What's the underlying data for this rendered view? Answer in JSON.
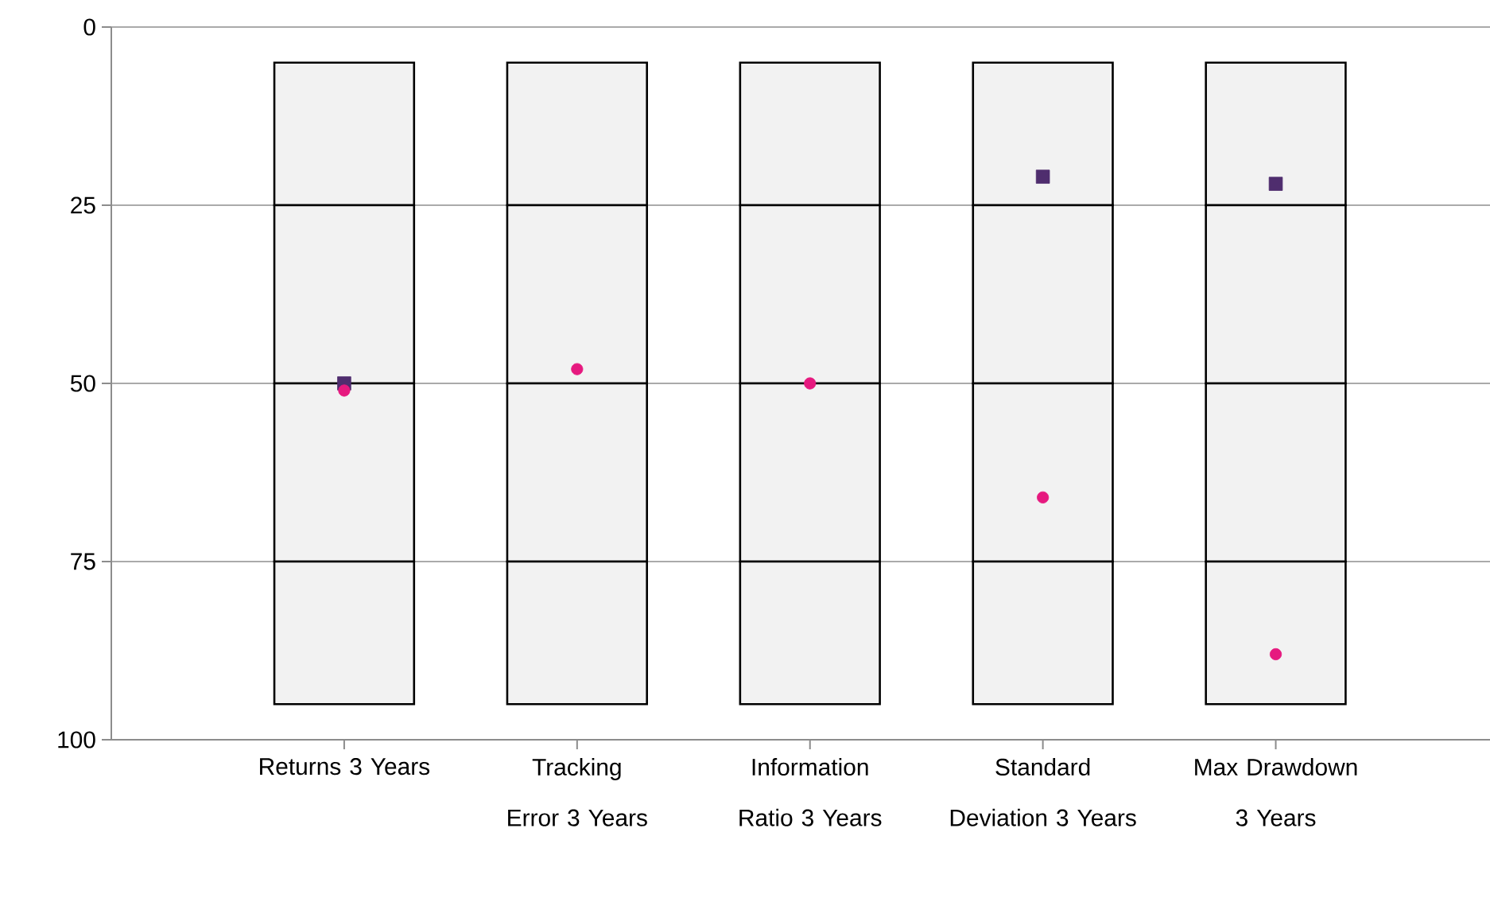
{
  "chart_data": {
    "type": "bar",
    "categories": [
      "Returns 3 Years",
      "Tracking Error 3 Years",
      "Information Ratio 3 Years",
      "Standard Deviation 3 Years",
      "Max Drawdown 3 Years"
    ],
    "ylim": [
      100,
      0
    ],
    "yticks": [
      0,
      25,
      50,
      75,
      100
    ],
    "grid": "y",
    "series": [
      {
        "color": "#f2f2f2",
        "base": [
          5,
          5,
          5,
          5,
          5
        ],
        "values": [
          20,
          20,
          20,
          20,
          20
        ]
      },
      {
        "color": "#f2f2f2",
        "base": [
          25,
          25,
          25,
          25,
          25
        ],
        "values": [
          25,
          25,
          25,
          25,
          25
        ]
      },
      {
        "color": "#f2f2f2",
        "base": [
          50,
          50,
          50,
          50,
          50
        ],
        "values": [
          25,
          25,
          25,
          25,
          25
        ]
      },
      {
        "color": "#f2f2f2",
        "base": [
          75,
          75,
          75,
          75,
          75
        ],
        "values": [
          20,
          20,
          20,
          20,
          20
        ]
      },
      {
        "type": "scatter",
        "marker": "square",
        "color": "#4f2d6e",
        "values": [
          50,
          null,
          null,
          21,
          22
        ]
      },
      {
        "type": "scatter",
        "marker": "circle",
        "color": "#e6197f",
        "values": [
          51,
          48,
          50,
          66,
          88
        ]
      }
    ]
  }
}
